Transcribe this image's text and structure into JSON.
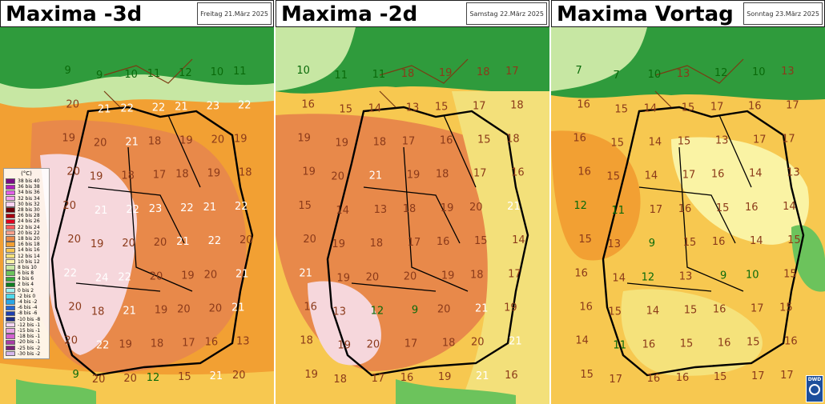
{
  "colors": {
    "sea": "#2f9b3c",
    "sea_light": "#c7e7a3",
    "land_warm": "#e8894a",
    "land_mid": "#efb050",
    "land_yellow": "#f3e07a",
    "land_pink": "#f6d7dc",
    "border": "#000000",
    "label_brown": "#8b3a1a",
    "label_white": "#ffffff",
    "label_green": "#0a6a0a"
  },
  "panels": [
    {
      "title": "Maxima -3d",
      "date": "Freitag 21.März 2025",
      "labels": [
        "9",
        "9",
        "10",
        "11",
        "12",
        "10",
        "11",
        "20",
        "21",
        "22",
        "22",
        "21",
        "23",
        "22",
        "19",
        "20",
        "21",
        "18",
        "19",
        "20",
        "19",
        "20",
        "19",
        "18",
        "17",
        "18",
        "19",
        "18",
        "20",
        "21",
        "22",
        "23",
        "22",
        "21",
        "22",
        "20",
        "19",
        "20",
        "20",
        "21",
        "22",
        "20",
        "22",
        "24",
        "22",
        "20",
        "19",
        "20",
        "21",
        "20",
        "18",
        "21",
        "19",
        "20",
        "20",
        "21",
        "20",
        "22",
        "19",
        "18",
        "17",
        "16",
        "13",
        "9",
        "20",
        "20",
        "12",
        "15",
        "21",
        "20"
      ]
    },
    {
      "title": "Maxima -2d",
      "date": "Samstag 22.März 2025",
      "labels": [
        "10",
        "11",
        "11",
        "18",
        "19",
        "18",
        "17",
        "16",
        "15",
        "14",
        "13",
        "15",
        "17",
        "18",
        "19",
        "19",
        "18",
        "17",
        "16",
        "15",
        "18",
        "19",
        "20",
        "21",
        "19",
        "18",
        "17",
        "16",
        "15",
        "14",
        "13",
        "18",
        "19",
        "20",
        "21",
        "20",
        "19",
        "18",
        "17",
        "16",
        "15",
        "14",
        "21",
        "19",
        "20",
        "20",
        "19",
        "18",
        "17",
        "16",
        "13",
        "12",
        "9",
        "20",
        "21",
        "19",
        "18",
        "19",
        "20",
        "17",
        "18",
        "20",
        "21",
        "19",
        "18",
        "17",
        "16",
        "19",
        "21",
        "16"
      ]
    },
    {
      "title": "Maxima Vortag",
      "date": "Sonntag 23.März 2025",
      "labels": [
        "7",
        "7",
        "10",
        "13",
        "12",
        "10",
        "13",
        "16",
        "15",
        "14",
        "15",
        "17",
        "16",
        "17",
        "16",
        "15",
        "14",
        "15",
        "13",
        "17",
        "17",
        "16",
        "15",
        "14",
        "17",
        "16",
        "14",
        "13",
        "12",
        "11",
        "17",
        "16",
        "15",
        "16",
        "14",
        "15",
        "13",
        "9",
        "15",
        "16",
        "14",
        "15",
        "16",
        "14",
        "12",
        "13",
        "9",
        "10",
        "15",
        "16",
        "15",
        "14",
        "15",
        "16",
        "17",
        "15",
        "14",
        "11",
        "16",
        "15",
        "16",
        "15",
        "16",
        "15",
        "17",
        "16",
        "16",
        "15",
        "17",
        "17"
      ]
    }
  ],
  "legend": {
    "unit": "(°C)",
    "items": [
      {
        "text": "38 bis 40",
        "color": "#7a0c86"
      },
      {
        "text": "36 bis 38",
        "color": "#b31fbd"
      },
      {
        "text": "34 bis 36",
        "color": "#e25ee7"
      },
      {
        "text": "32 bis 34",
        "color": "#f59ff0"
      },
      {
        "text": "30 bis 32",
        "color": "#fcd3f3"
      },
      {
        "text": "28 bis 30",
        "color": "#6e0008"
      },
      {
        "text": "26 bis 28",
        "color": "#a8000e"
      },
      {
        "text": "24 bis 26",
        "color": "#e0001e"
      },
      {
        "text": "22 bis 24",
        "color": "#ff5a5a"
      },
      {
        "text": "20 bis 22",
        "color": "#f7a08b"
      },
      {
        "text": "18 bis 20",
        "color": "#e8894a"
      },
      {
        "text": "16 bis 18",
        "color": "#f2a033"
      },
      {
        "text": "14 bis 16",
        "color": "#f7c850"
      },
      {
        "text": "12 bis 14",
        "color": "#f5e27b"
      },
      {
        "text": "10 bis 12",
        "color": "#faf3a4"
      },
      {
        "text": "8 bis 10",
        "color": "#c7e7a3"
      },
      {
        "text": "6 bis 8",
        "color": "#6cc35c"
      },
      {
        "text": "4 bis 6",
        "color": "#34a83a"
      },
      {
        "text": "2 bis 4",
        "color": "#107e22"
      },
      {
        "text": "0 bis 2",
        "color": "#9ff2f1"
      },
      {
        "text": "-2 bis 0",
        "color": "#4ed9ea"
      },
      {
        "text": "-4 bis -2",
        "color": "#2aa7e6"
      },
      {
        "text": "-6 bis -4",
        "color": "#2567d5"
      },
      {
        "text": "-8 bis -6",
        "color": "#1e3fb0"
      },
      {
        "text": "-10 bis -8",
        "color": "#1b2c8a"
      },
      {
        "text": "-12 bis -1",
        "color": "#f5d5f2"
      },
      {
        "text": "-15 bis -1",
        "color": "#e7a3e5"
      },
      {
        "text": "-18 bis -1",
        "color": "#d25fd0"
      },
      {
        "text": "-20 bis -1",
        "color": "#a93ca6"
      },
      {
        "text": "-25 bis -2",
        "color": "#7c2179"
      },
      {
        "text": "-30 bis -2",
        "color": "#d6b7ee"
      }
    ]
  },
  "logo_text": "DWD"
}
